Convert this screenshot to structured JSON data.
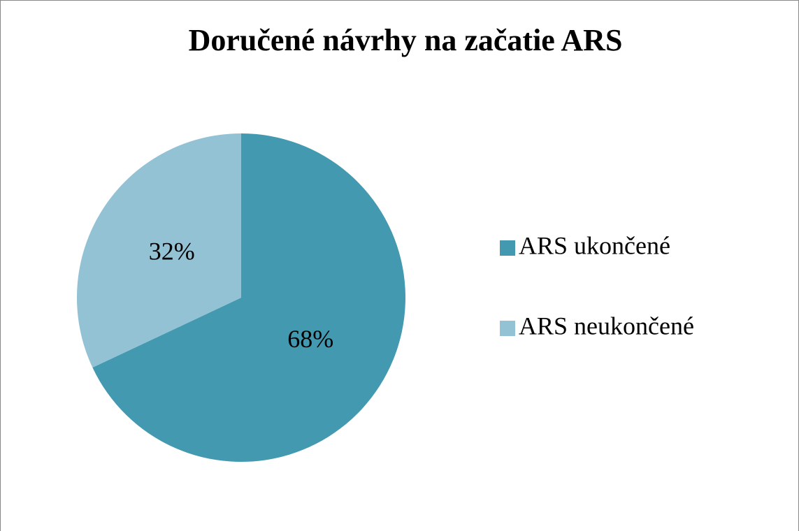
{
  "chart_data": {
    "type": "pie",
    "title": "Doručené návrhy na začatie ARS",
    "categories": [
      "ARS ukončené",
      "ARS neukončené"
    ],
    "values": [
      68,
      32
    ],
    "value_labels": [
      "68%",
      "32%"
    ],
    "colors": [
      "#4399b0",
      "#93c2d4"
    ],
    "legend": "right"
  }
}
